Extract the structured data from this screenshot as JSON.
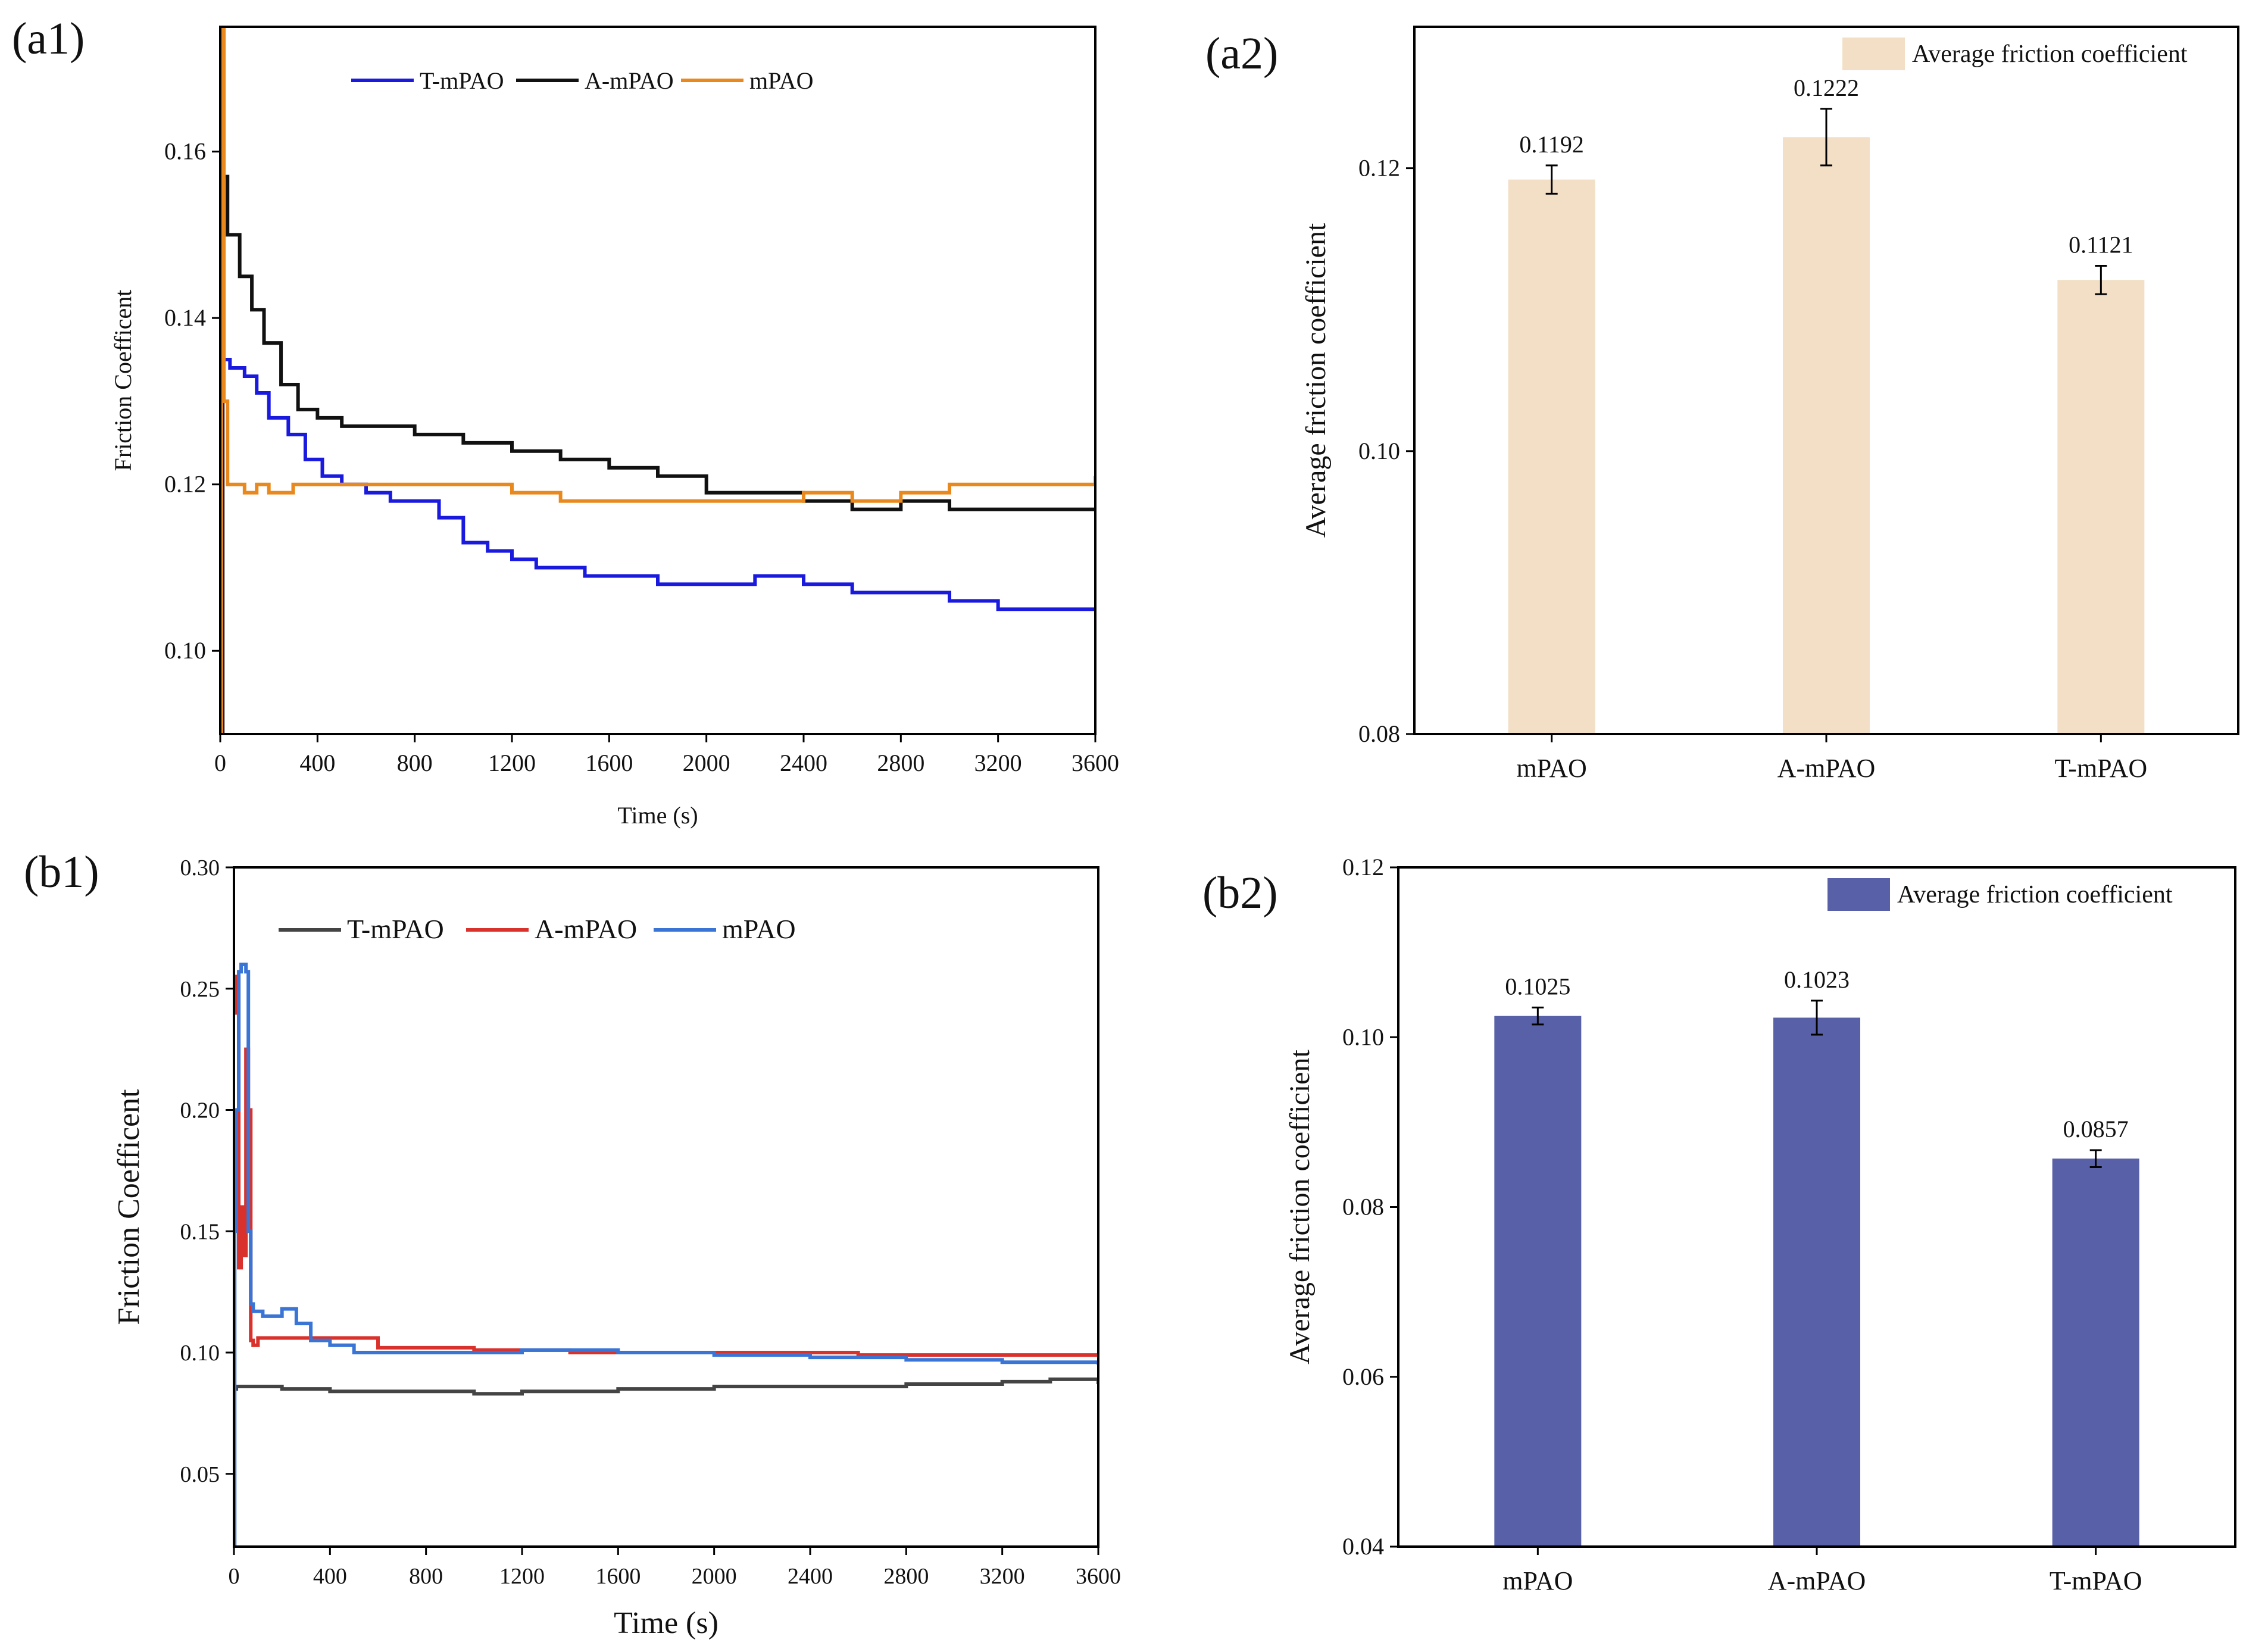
{
  "chart_data": [
    {
      "id": "a1",
      "panel_label": "(a1)",
      "type": "line",
      "xlabel": "Time (s)",
      "ylabel": "Friction Coefficent",
      "xlim": [
        0,
        3600
      ],
      "ylim": [
        0.09,
        0.175
      ],
      "xticks": [
        0,
        400,
        800,
        1200,
        1600,
        2000,
        2400,
        2800,
        3200,
        3600
      ],
      "yticks": [
        0.1,
        0.12,
        0.14,
        0.16
      ],
      "ytick_labels": [
        "0.10",
        "0.12",
        "0.14",
        "0.16"
      ],
      "legend_position": "top-center",
      "series": [
        {
          "name": "T-mPAO",
          "color": "#1a1adf",
          "x": [
            0,
            10,
            40,
            100,
            150,
            200,
            280,
            350,
            420,
            500,
            600,
            700,
            800,
            900,
            1000,
            1100,
            1200,
            1300,
            1400,
            1500,
            1600,
            1700,
            1800,
            1900,
            2000,
            2200,
            2400,
            2600,
            2800,
            3000,
            3200,
            3400,
            3500,
            3600
          ],
          "y": [
            0.09,
            0.135,
            0.134,
            0.133,
            0.131,
            0.128,
            0.126,
            0.123,
            0.121,
            0.12,
            0.119,
            0.118,
            0.118,
            0.116,
            0.113,
            0.112,
            0.111,
            0.11,
            0.11,
            0.109,
            0.109,
            0.109,
            0.108,
            0.108,
            0.108,
            0.109,
            0.108,
            0.107,
            0.107,
            0.106,
            0.105,
            0.105,
            0.105,
            0.105
          ]
        },
        {
          "name": "A-mPAO",
          "color": "#111111",
          "x": [
            0,
            10,
            30,
            80,
            130,
            180,
            250,
            320,
            400,
            500,
            600,
            700,
            800,
            900,
            1000,
            1200,
            1400,
            1600,
            1800,
            2000,
            2200,
            2400,
            2600,
            2800,
            3000,
            3200,
            3400,
            3600
          ],
          "y": [
            0.09,
            0.157,
            0.15,
            0.145,
            0.141,
            0.137,
            0.132,
            0.129,
            0.128,
            0.127,
            0.127,
            0.127,
            0.126,
            0.126,
            0.125,
            0.124,
            0.123,
            0.122,
            0.121,
            0.119,
            0.119,
            0.118,
            0.117,
            0.118,
            0.117,
            0.117,
            0.117,
            0.117
          ]
        },
        {
          "name": "mPAO",
          "color": "#e9891d",
          "x": [
            0,
            5,
            15,
            30,
            60,
            100,
            150,
            200,
            300,
            400,
            600,
            800,
            1000,
            1200,
            1400,
            1600,
            1800,
            2000,
            2200,
            2400,
            2600,
            2800,
            3000,
            3200,
            3400,
            3600
          ],
          "y": [
            0.09,
            0.175,
            0.13,
            0.12,
            0.12,
            0.119,
            0.12,
            0.119,
            0.12,
            0.12,
            0.12,
            0.12,
            0.12,
            0.119,
            0.118,
            0.118,
            0.118,
            0.118,
            0.118,
            0.119,
            0.118,
            0.119,
            0.12,
            0.12,
            0.12,
            0.121
          ]
        }
      ]
    },
    {
      "id": "a2",
      "panel_label": "(a2)",
      "type": "bar",
      "categories": [
        "mPAO",
        "A-mPAO",
        "T-mPAO"
      ],
      "values": [
        0.1192,
        0.1222,
        0.1121
      ],
      "value_labels": [
        "0.1192",
        "0.1222",
        "0.1121"
      ],
      "errors": [
        0.001,
        0.002,
        0.001
      ],
      "bar_color": "#f2dfc5",
      "legend": "Average friction coefficient",
      "legend_position": "top-right",
      "ylabel": "Average friction coefficient",
      "ylim": [
        0.08,
        0.13
      ],
      "yticks": [
        0.08,
        0.1,
        0.12
      ],
      "ytick_labels": [
        "0.08",
        "0.10",
        "0.12"
      ]
    },
    {
      "id": "b1",
      "panel_label": "(b1)",
      "type": "line",
      "xlabel": "Time (s)",
      "ylabel": "Friction Coefficent",
      "xlim": [
        0,
        3600
      ],
      "ylim": [
        0.02,
        0.3
      ],
      "xticks": [
        0,
        400,
        800,
        1200,
        1600,
        2000,
        2400,
        2800,
        3200,
        3600
      ],
      "yticks": [
        0.05,
        0.1,
        0.15,
        0.2,
        0.25,
        0.3
      ],
      "ytick_labels": [
        "0.05",
        "0.10",
        "0.15",
        "0.20",
        "0.25",
        "0.30"
      ],
      "legend_position": "top-center",
      "series": [
        {
          "name": "T-mPAO",
          "color": "#444444",
          "x": [
            0,
            10,
            200,
            400,
            600,
            800,
            1000,
            1200,
            1400,
            1600,
            1800,
            2000,
            2200,
            2400,
            2600,
            2800,
            3000,
            3200,
            3400,
            3600
          ],
          "y": [
            0.085,
            0.086,
            0.085,
            0.084,
            0.084,
            0.084,
            0.083,
            0.084,
            0.084,
            0.085,
            0.085,
            0.086,
            0.086,
            0.086,
            0.086,
            0.087,
            0.087,
            0.088,
            0.089,
            0.087
          ]
        },
        {
          "name": "A-mPAO",
          "color": "#d9312c",
          "x": [
            0,
            10,
            20,
            30,
            40,
            50,
            60,
            70,
            80,
            100,
            300,
            600,
            1000,
            1400,
            1800,
            2200,
            2600,
            3000,
            3400,
            3600
          ],
          "y": [
            0.24,
            0.255,
            0.135,
            0.16,
            0.14,
            0.225,
            0.2,
            0.105,
            0.103,
            0.106,
            0.106,
            0.102,
            0.101,
            0.1,
            0.1,
            0.1,
            0.099,
            0.099,
            0.099,
            0.099
          ]
        },
        {
          "name": "mPAO",
          "color": "#3a75d6",
          "x": [
            0,
            3,
            10,
            20,
            30,
            40,
            50,
            60,
            70,
            80,
            120,
            200,
            260,
            320,
            400,
            500,
            800,
            1200,
            1600,
            2000,
            2400,
            2800,
            3200,
            3600
          ],
          "y": [
            0.02,
            0.15,
            0.2,
            0.257,
            0.26,
            0.26,
            0.257,
            0.15,
            0.12,
            0.117,
            0.115,
            0.118,
            0.112,
            0.105,
            0.103,
            0.1,
            0.1,
            0.101,
            0.1,
            0.099,
            0.098,
            0.097,
            0.096,
            0.095
          ]
        }
      ]
    },
    {
      "id": "b2",
      "panel_label": "(b2)",
      "type": "bar",
      "categories": [
        "mPAO",
        "A-mPAO",
        "T-mPAO"
      ],
      "values": [
        0.1025,
        0.1023,
        0.0857
      ],
      "value_labels": [
        "0.1025",
        "0.1023",
        "0.0857"
      ],
      "errors": [
        0.001,
        0.002,
        0.001
      ],
      "bar_color": "#5860a8",
      "legend": "Average friction coefficient",
      "legend_position": "top-right",
      "ylabel": "Average friction coefficient",
      "ylim": [
        0.04,
        0.12
      ],
      "yticks": [
        0.04,
        0.06,
        0.08,
        0.1,
        0.12
      ],
      "ytick_labels": [
        "0.04",
        "0.06",
        "0.08",
        "0.10",
        "0.12"
      ]
    }
  ]
}
